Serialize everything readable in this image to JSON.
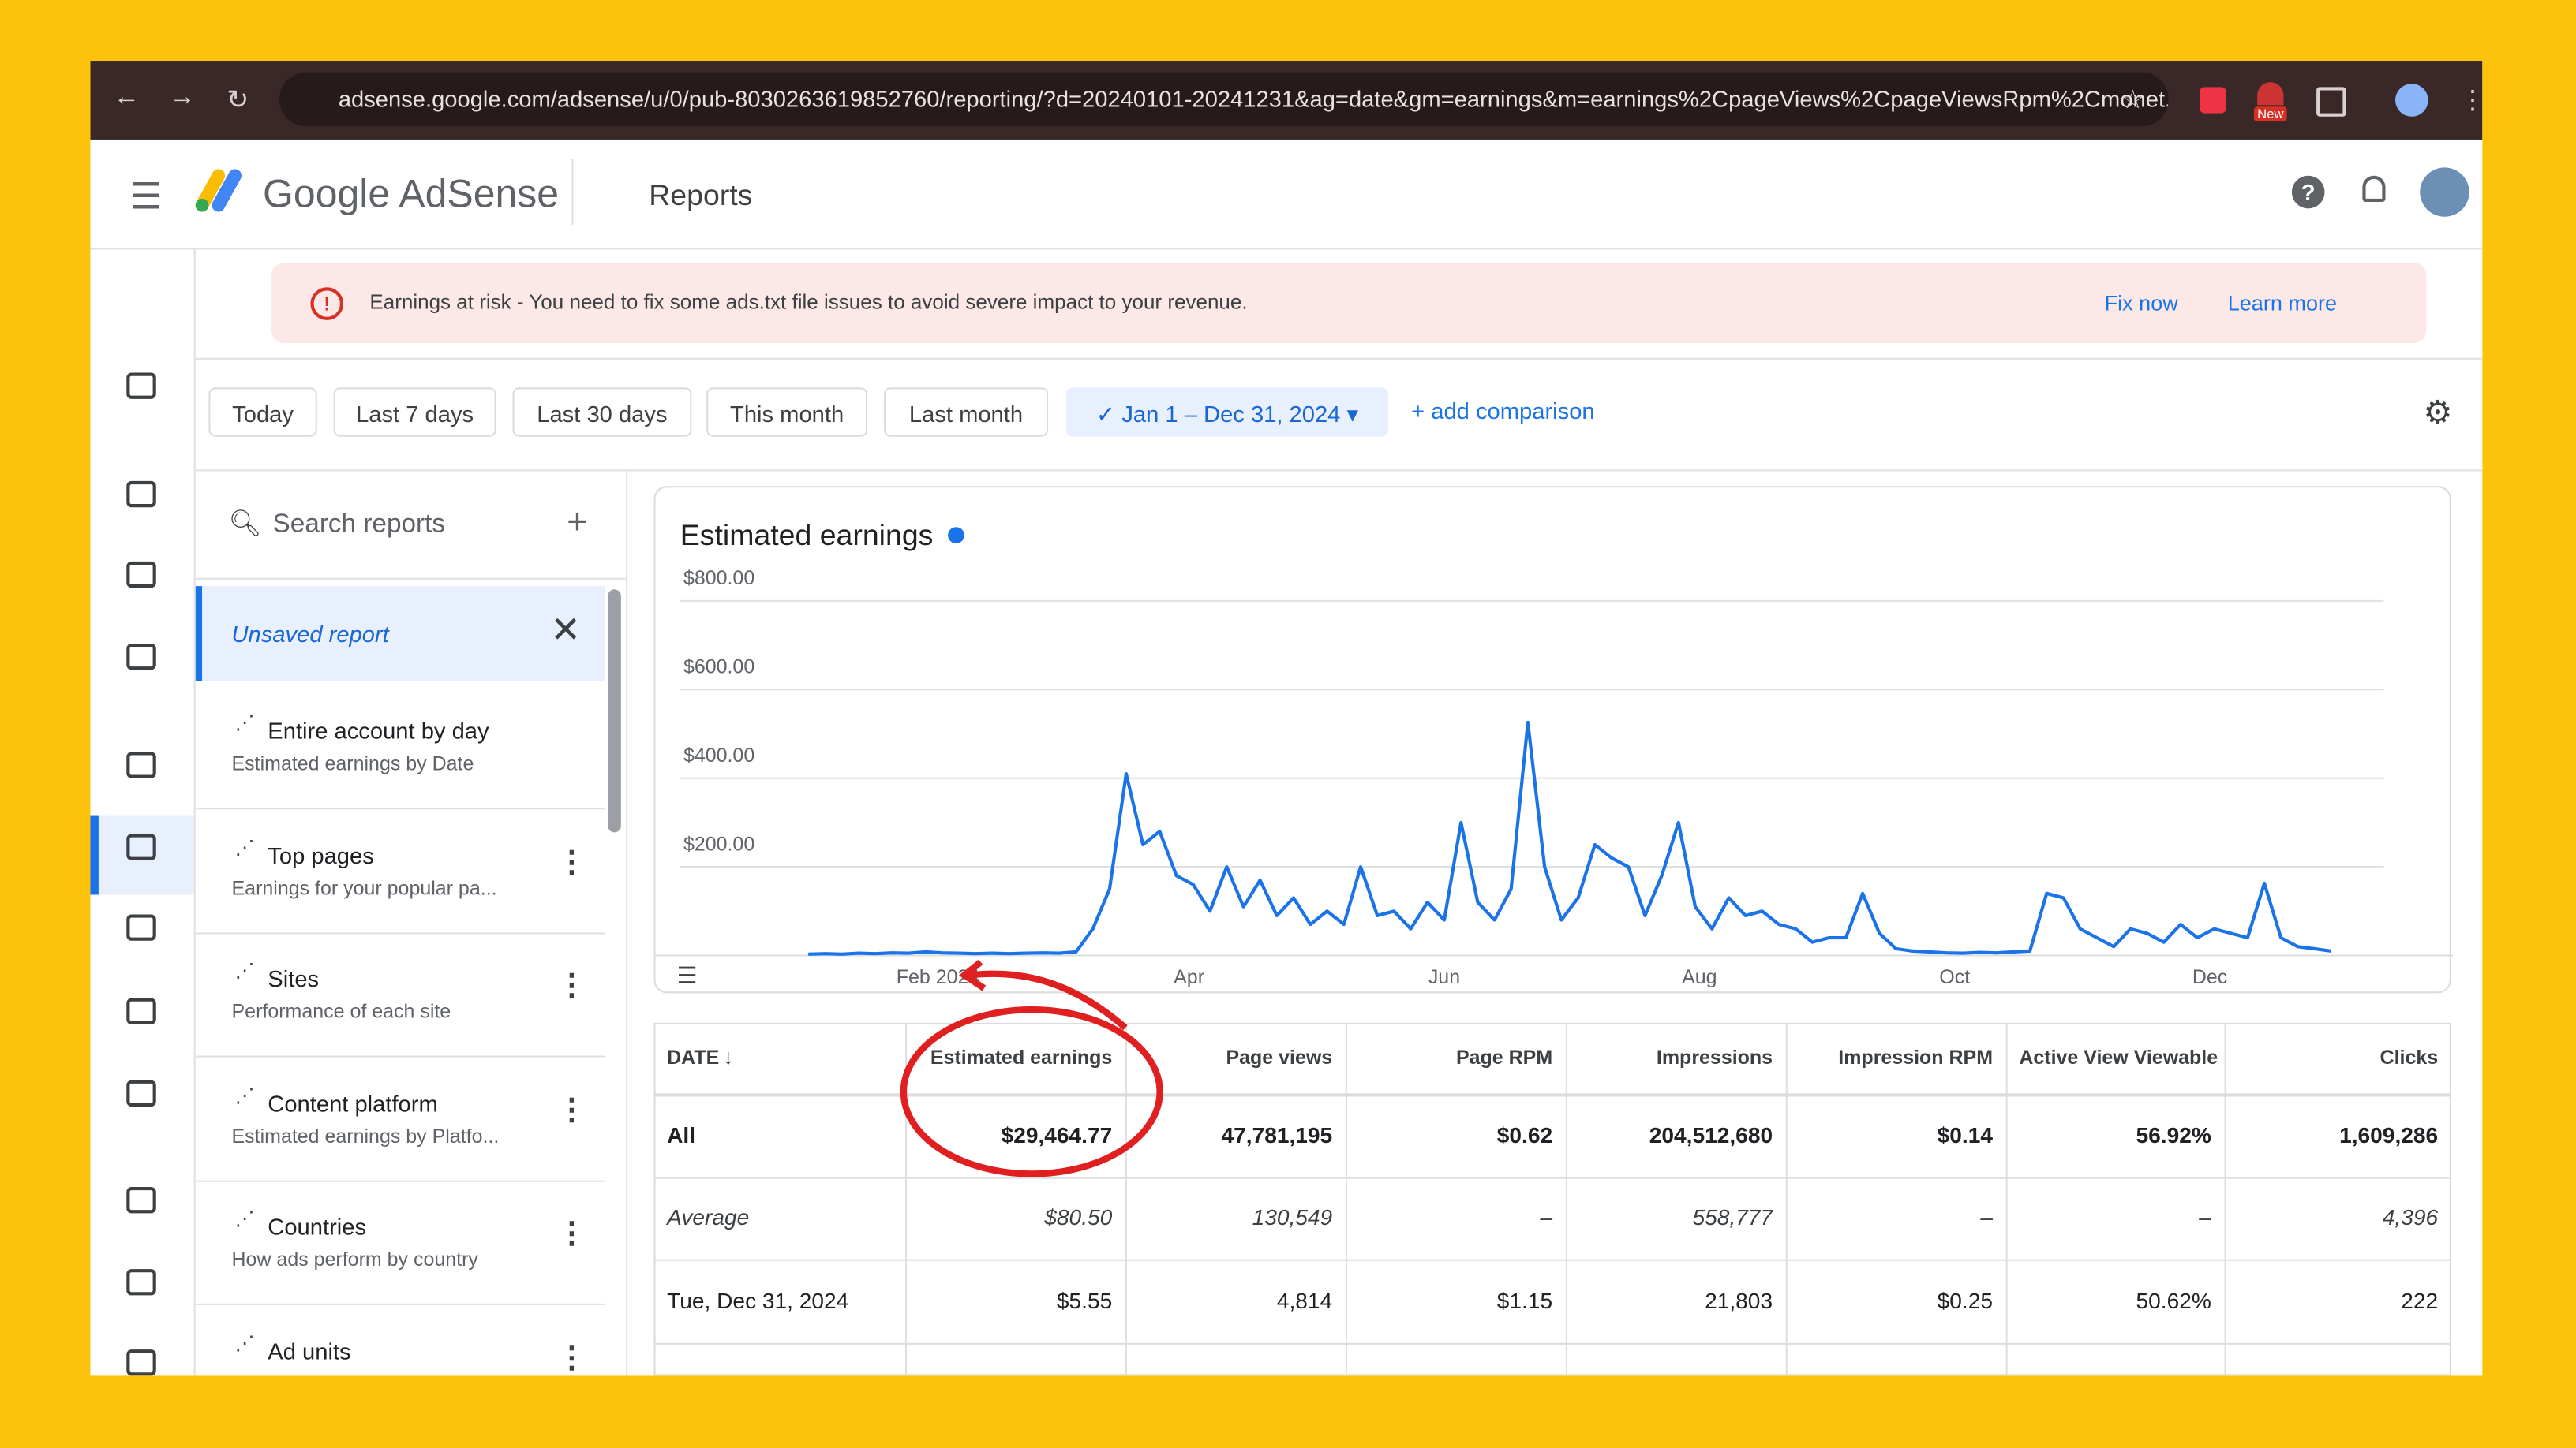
{
  "browser": {
    "url": "adsense.google.com/adsense/u/0/pub-8030263619852760/reporting/?d=20240101-20241231&ag=date&gm=earnings&m=earnings%2CpageViews%2CpageViewsRpm%2Cmonet...",
    "badge": "New"
  },
  "header": {
    "brand": "Google AdSense",
    "page": "Reports"
  },
  "alert": {
    "text": "Earnings at risk - You need to fix some ads.txt file issues to avoid severe impact to your revenue.",
    "fix": "Fix now",
    "learn": "Learn more"
  },
  "filters": {
    "chips": [
      "Today",
      "Last 7 days",
      "Last 30 days",
      "This month",
      "Last month"
    ],
    "selected": "Jan 1 – Dec 31, 2024",
    "add": "add comparison"
  },
  "sidebar": {
    "search": "Search reports",
    "unsaved": "Unsaved report",
    "items": [
      {
        "title": "Entire account by day",
        "subtitle": "Estimated earnings by Date"
      },
      {
        "title": "Top pages",
        "subtitle": "Earnings for your popular pa..."
      },
      {
        "title": "Sites",
        "subtitle": "Performance of each site"
      },
      {
        "title": "Content platform",
        "subtitle": "Estimated earnings by Platfo..."
      },
      {
        "title": "Countries",
        "subtitle": "How ads perform by country"
      },
      {
        "title": "Ad units"
      }
    ]
  },
  "chart_data": {
    "type": "line",
    "title": "Estimated earnings",
    "xlim": [
      0,
      91
    ],
    "xticks": [
      {
        "value": 7.75,
        "label": "Feb 2024"
      },
      {
        "value": 22.75,
        "label": "Apr"
      },
      {
        "value": 38,
        "label": "Jun"
      },
      {
        "value": 53.25,
        "label": "Aug"
      },
      {
        "value": 68.5,
        "label": "Oct"
      },
      {
        "value": 83.75,
        "label": "Dec"
      }
    ],
    "ylim": [
      0,
      800
    ],
    "yticks": [
      {
        "value": 200,
        "label": "$200.00"
      },
      {
        "value": 400,
        "label": "$400.00"
      },
      {
        "value": 600,
        "label": "$600.00"
      },
      {
        "value": 800,
        "label": "$800.00"
      }
    ],
    "grid": true,
    "series": [
      {
        "name": "Estimated earnings",
        "color": "#1a73e8",
        "values": [
          3,
          4,
          3,
          5,
          4,
          6,
          5,
          8,
          6,
          5,
          4,
          5,
          4,
          5,
          6,
          5,
          8,
          60,
          150,
          410,
          250,
          280,
          180,
          160,
          100,
          200,
          110,
          170,
          90,
          130,
          70,
          100,
          70,
          200,
          90,
          100,
          60,
          120,
          80,
          300,
          120,
          80,
          150,
          526,
          200,
          80,
          130,
          250,
          220,
          200,
          90,
          180,
          300,
          110,
          60,
          130,
          90,
          100,
          70,
          60,
          30,
          40,
          40,
          140,
          50,
          15,
          10,
          8,
          6,
          5,
          7,
          6,
          8,
          10,
          140,
          130,
          60,
          40,
          20,
          60,
          50,
          30,
          70,
          40,
          60,
          50,
          40,
          163,
          40,
          20,
          15,
          10
        ]
      }
    ]
  },
  "table": {
    "columns": [
      "DATE",
      "Estimated earnings",
      "Page views",
      "Page RPM",
      "Impressions",
      "Impression RPM",
      "Active View Viewable",
      "Clicks"
    ],
    "rows": [
      [
        "All",
        "$29,464.77",
        "47,781,195",
        "$0.62",
        "204,512,680",
        "$0.14",
        "56.92%",
        "1,609,286"
      ],
      [
        "Average",
        "$80.50",
        "130,549",
        "–",
        "558,777",
        "–",
        "–",
        "4,396"
      ],
      [
        "Tue, Dec 31, 2024",
        "$5.55",
        "4,814",
        "$1.15",
        "21,803",
        "$0.25",
        "50.62%",
        "222"
      ]
    ]
  }
}
